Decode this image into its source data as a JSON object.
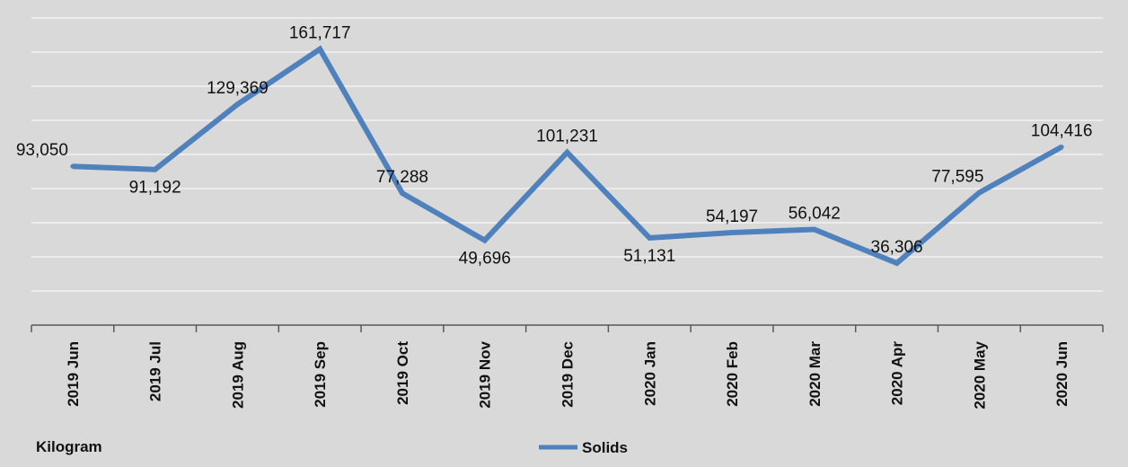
{
  "chart_data": {
    "type": "line",
    "categories": [
      "2019 Jun",
      "2019 Jul",
      "2019 Aug",
      "2019 Sep",
      "2019 Oct",
      "2019 Nov",
      "2019 Dec",
      "2020 Jan",
      "2020 Feb",
      "2020 Mar",
      "2020 Apr",
      "2020 May",
      "2020 Jun"
    ],
    "series": [
      {
        "name": "Solids",
        "values": [
          93050,
          91192,
          129369,
          161717,
          77288,
          49696,
          101231,
          51131,
          54197,
          56042,
          36306,
          77595,
          104416
        ],
        "labels": [
          "93,050",
          "91,192",
          "129,369",
          "161,717",
          "77,288",
          "49,696",
          "101,231",
          "51,131",
          "54,197",
          "56,042",
          "36,306",
          "77,595",
          "104,416"
        ],
        "color": "#4f81bd"
      }
    ],
    "title": "",
    "xlabel": "",
    "ylabel": "Kilogram",
    "ylim": [
      0,
      180000
    ],
    "grid": true,
    "legend": "bottom-center"
  }
}
